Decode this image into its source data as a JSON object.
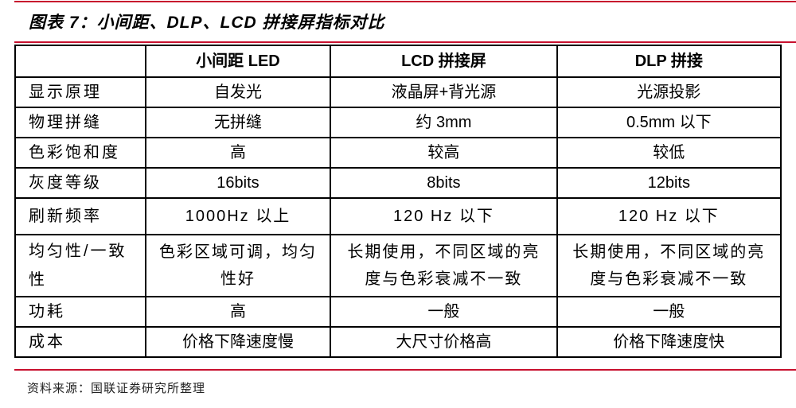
{
  "title": "图表 7：小间距、DLP、LCD 拼接屏指标对比",
  "table": {
    "headers": [
      "",
      "小间距 LED",
      "LCD 拼接屏",
      "DLP 拼接"
    ],
    "rows": [
      [
        "显示原理",
        "自发光",
        "液晶屏+背光源",
        "光源投影"
      ],
      [
        "物理拼缝",
        "无拼缝",
        "约 3mm",
        "0.5mm 以下"
      ],
      [
        "色彩饱和度",
        "高",
        "较高",
        "较低"
      ],
      [
        "灰度等级",
        "16bits",
        "8bits",
        "12bits"
      ],
      [
        "刷新频率",
        "1000Hz 以上",
        "120 Hz 以下",
        "120 Hz 以下"
      ],
      [
        "均匀性/一致性",
        "色彩区域可调，均匀性好",
        "长期使用，不同区域的亮度与色彩衰减不一致",
        "长期使用，不同区域的亮度与色彩衰减不一致"
      ],
      [
        "功耗",
        "高",
        "一般",
        "一般"
      ],
      [
        "成本",
        "价格下降速度慢",
        "大尺寸价格高",
        "价格下降速度快"
      ]
    ]
  },
  "source": "资料来源：国联证券研究所整理",
  "colors": {
    "rule": "#c8102e"
  }
}
